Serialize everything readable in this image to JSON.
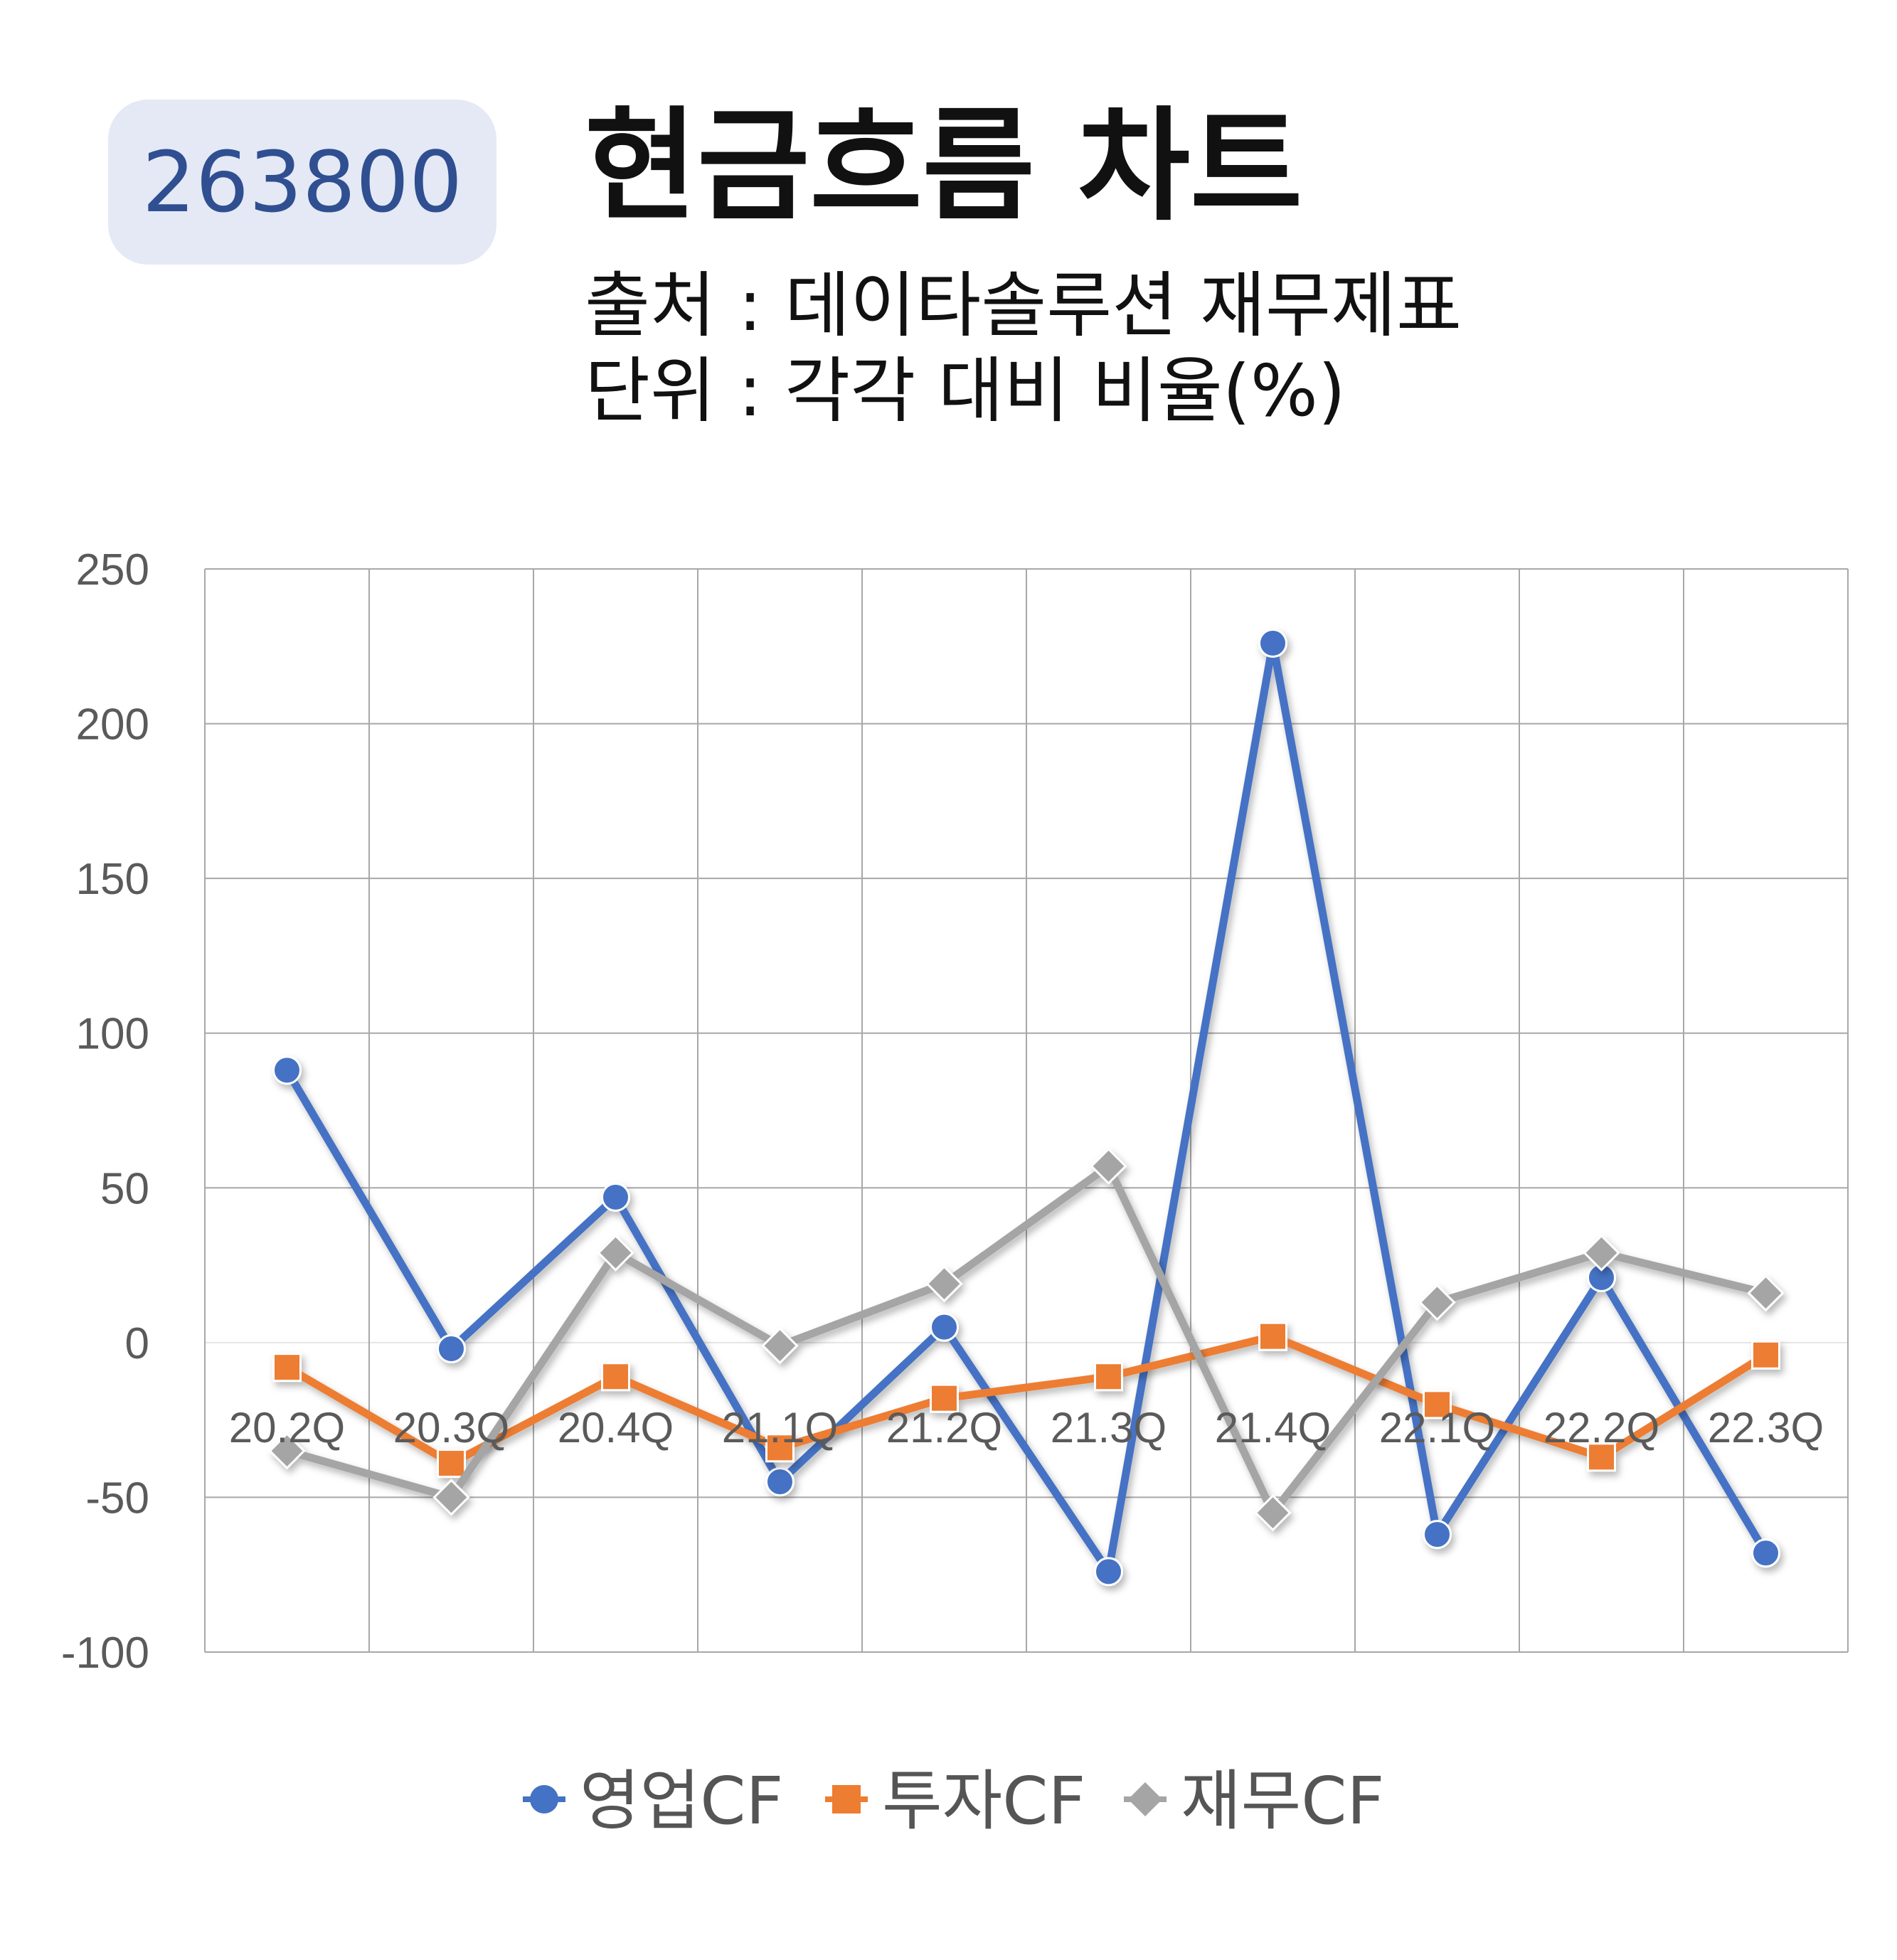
{
  "header": {
    "code": "263800",
    "title": "현금흐름 차트",
    "source": "출처 : 데이타솔루션 재무제표",
    "unit": "단위 : 각각 대비 비율(%)"
  },
  "chart_data": {
    "type": "line",
    "title": "현금흐름 차트",
    "categories": [
      "20.2Q",
      "20.3Q",
      "20.4Q",
      "21.1Q",
      "21.2Q",
      "21.3Q",
      "21.4Q",
      "22.1Q",
      "22.2Q",
      "22.3Q"
    ],
    "ylim": [
      -100,
      250
    ],
    "yticks": [
      -100,
      -50,
      0,
      50,
      100,
      150,
      200,
      250
    ],
    "grid": true,
    "legend_position": "bottom",
    "series": [
      {
        "name": "영업CF",
        "color": "#4472c4",
        "marker": "circle",
        "values": [
          88,
          -2,
          47,
          -45,
          5,
          -74,
          226,
          -62,
          21,
          -68
        ]
      },
      {
        "name": "투자CF",
        "color": "#ed7d31",
        "marker": "square",
        "values": [
          -8,
          -39,
          -11,
          -34,
          -18,
          -11,
          2,
          -20,
          -37,
          -4
        ]
      },
      {
        "name": "재무CF",
        "color": "#a5a5a5",
        "marker": "diamond",
        "values": [
          -35,
          -50,
          29,
          -1,
          19,
          57,
          -55,
          13,
          29,
          16
        ]
      }
    ]
  }
}
